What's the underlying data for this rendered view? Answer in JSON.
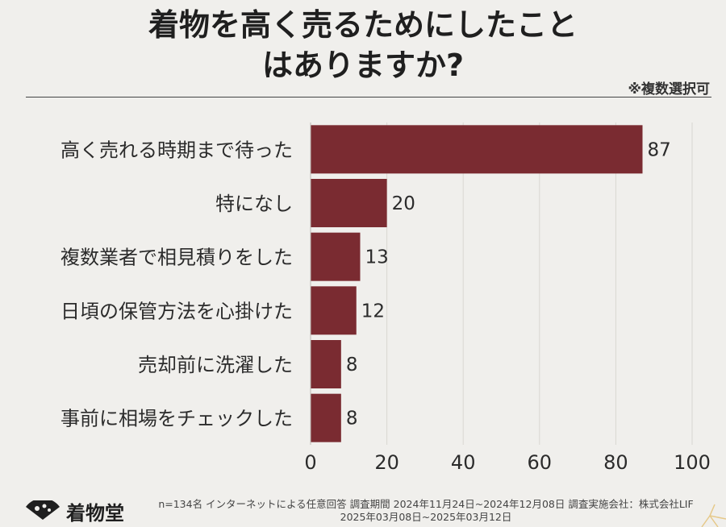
{
  "header": {
    "title_line1": "着物を高く売るためにしたこと",
    "title_line2": "はありますか?",
    "note": "※複数選択可"
  },
  "chart_data": {
    "type": "bar",
    "orientation": "horizontal",
    "categories": [
      "高く売れる時期まで待った",
      "特になし",
      "複数業者で相見積りをした",
      "日頃の保管方法を心掛けた",
      "売却前に洗濯した",
      "事前に相場をチェックした"
    ],
    "values": [
      87,
      20,
      13,
      12,
      8,
      8
    ],
    "xlim": [
      0,
      100
    ],
    "xticks": [
      0,
      20,
      40,
      60,
      80,
      100
    ],
    "bar_color": "#7a2b31",
    "grid": true
  },
  "footer": {
    "logo_text": "着物堂",
    "survey_line1": "n=134名 インターネットによる任意回答 調査期間 2024年11月24日~2024年12月08日 調査実施会社：株式会社LIF",
    "survey_line2": "2025年03月08日~2025年03月12日"
  }
}
